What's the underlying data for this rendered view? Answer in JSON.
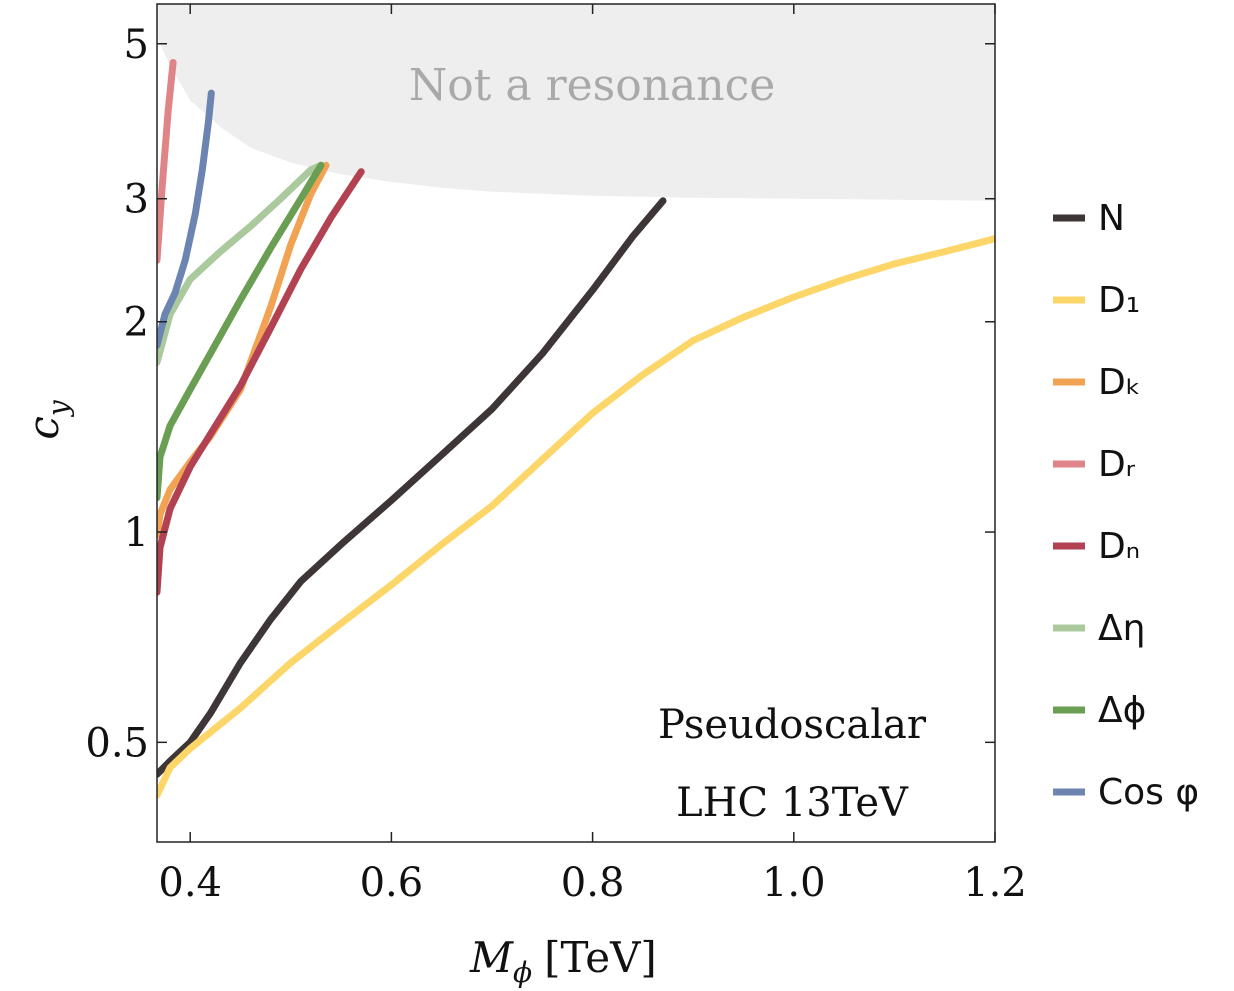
{
  "chart_data": {
    "type": "line",
    "title": "",
    "xlabel": "M",
    "xlabel_sub": "ϕ",
    "xlabel_unit": "[TeV]",
    "ylabel": "c",
    "ylabel_sub": "y",
    "xlim": [
      0.367,
      1.2
    ],
    "ylim": [
      0.36,
      5.7
    ],
    "yscale": "log",
    "xticks": [
      0.4,
      0.6,
      0.8,
      1.0,
      1.2
    ],
    "xtick_labels": [
      "0.4",
      "0.6",
      "0.8",
      "1.0",
      "1.2"
    ],
    "yticks": [
      0.5,
      1,
      2,
      3,
      5
    ],
    "ytick_labels": [
      "0.5",
      "1",
      "2",
      "3",
      "5"
    ],
    "shaded_region": {
      "label": "Not a resonance",
      "color": "#eeeeee",
      "boundary": [
        [
          0.367,
          5.1
        ],
        [
          0.38,
          4.65
        ],
        [
          0.4,
          4.15
        ],
        [
          0.43,
          3.8
        ],
        [
          0.46,
          3.55
        ],
        [
          0.5,
          3.38
        ],
        [
          0.55,
          3.25
        ],
        [
          0.6,
          3.17
        ],
        [
          0.65,
          3.11
        ],
        [
          0.7,
          3.07
        ],
        [
          0.8,
          3.03
        ],
        [
          0.9,
          3.01
        ],
        [
          1.0,
          3.0
        ],
        [
          1.1,
          2.99
        ],
        [
          1.2,
          2.98
        ]
      ]
    },
    "annotation": [
      "Pseudoscalar",
      "LHC 13TeV"
    ],
    "legend_position": "right",
    "series": [
      {
        "name": "N",
        "color": "#3d3536",
        "x": [
          0.367,
          0.38,
          0.4,
          0.42,
          0.45,
          0.48,
          0.51,
          0.55,
          0.6,
          0.65,
          0.7,
          0.75,
          0.8,
          0.84,
          0.87
        ],
        "y": [
          0.45,
          0.47,
          0.5,
          0.55,
          0.65,
          0.75,
          0.85,
          0.96,
          1.11,
          1.29,
          1.5,
          1.8,
          2.22,
          2.65,
          2.98
        ]
      },
      {
        "name": "D₁",
        "color": "#fdd66a",
        "x": [
          0.367,
          0.38,
          0.4,
          0.45,
          0.5,
          0.55,
          0.6,
          0.65,
          0.7,
          0.75,
          0.8,
          0.85,
          0.9,
          0.95,
          1.0,
          1.05,
          1.1,
          1.15,
          1.2
        ],
        "y": [
          0.42,
          0.46,
          0.49,
          0.56,
          0.65,
          0.74,
          0.84,
          0.96,
          1.09,
          1.27,
          1.48,
          1.68,
          1.88,
          2.03,
          2.17,
          2.3,
          2.42,
          2.52,
          2.63
        ]
      },
      {
        "name": "Dₖ",
        "color": "#f2a253",
        "x": [
          0.367,
          0.37,
          0.38,
          0.4,
          0.42,
          0.45,
          0.48,
          0.5,
          0.52,
          0.535
        ],
        "y": [
          0.99,
          1.06,
          1.15,
          1.26,
          1.37,
          1.6,
          2.1,
          2.58,
          3.05,
          3.35
        ]
      },
      {
        "name": "Dᵣ",
        "color": "#e08587",
        "x": [
          0.367,
          0.372,
          0.378,
          0.383
        ],
        "y": [
          2.45,
          3.1,
          4.0,
          4.7
        ]
      },
      {
        "name": "Dₙ",
        "color": "#b24251",
        "x": [
          0.367,
          0.37,
          0.38,
          0.4,
          0.42,
          0.45,
          0.48,
          0.51,
          0.54,
          0.57
        ],
        "y": [
          0.82,
          0.95,
          1.08,
          1.24,
          1.38,
          1.62,
          1.96,
          2.38,
          2.82,
          3.28
        ]
      },
      {
        "name": "Δη",
        "color": "#aac99c",
        "x": [
          0.367,
          0.38,
          0.4,
          0.43,
          0.46,
          0.49,
          0.52,
          0.53
        ],
        "y": [
          1.75,
          2.05,
          2.3,
          2.52,
          2.74,
          3.0,
          3.3,
          3.35
        ]
      },
      {
        "name": "Δϕ",
        "color": "#6a9e53",
        "x": [
          0.367,
          0.37,
          0.38,
          0.4,
          0.42,
          0.45,
          0.48,
          0.51,
          0.53
        ],
        "y": [
          1.12,
          1.28,
          1.42,
          1.6,
          1.8,
          2.15,
          2.55,
          3.0,
          3.35
        ]
      },
      {
        "name": "Cos φ",
        "color": "#6b84b2",
        "x": [
          0.367,
          0.375,
          0.385,
          0.395,
          0.405,
          0.412,
          0.418,
          0.421
        ],
        "y": [
          1.85,
          2.05,
          2.2,
          2.45,
          2.85,
          3.3,
          3.85,
          4.25
        ]
      }
    ]
  }
}
